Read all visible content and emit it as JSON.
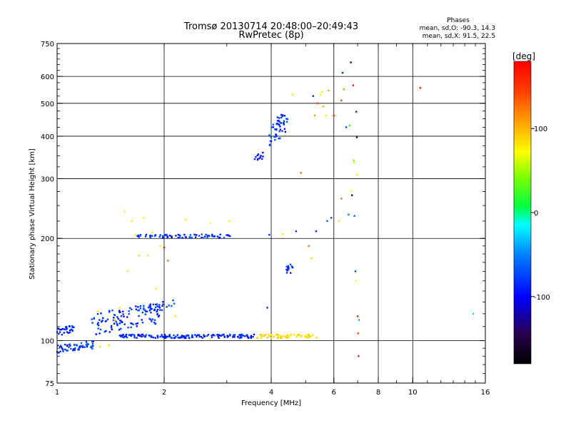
{
  "chart_data": {
    "type": "scatter",
    "title": "Tromsø 20130714 20:48:00–20:49:43",
    "subtitle": "RwPretec (8p)",
    "phases": {
      "title": "Phases",
      "line_o": "mean, sd,O: -90.3, 14.3",
      "line_x": "mean, sd,X:  91.5, 22.5"
    },
    "xlabel": "Frequency [MHz]",
    "ylabel": "Stationary phase Virtual Height [km]",
    "x_scale": "log",
    "y_scale": "log",
    "xlim": [
      1,
      16
    ],
    "ylim": [
      75,
      750
    ],
    "x_ticks": [
      1,
      2,
      4,
      6,
      8,
      10,
      16
    ],
    "x_tick_labels": [
      "1",
      "2",
      "4",
      "6",
      "8",
      "10",
      "16"
    ],
    "y_ticks": [
      75,
      100,
      200,
      300,
      400,
      500,
      600,
      750
    ],
    "y_tick_labels": [
      "75",
      "100",
      "200",
      "300",
      "400",
      "500",
      "600",
      "750"
    ],
    "grid": true,
    "colorbar": {
      "label": "[deg]",
      "min": -180,
      "max": 180,
      "ticks": [
        100,
        0,
        -100
      ],
      "tick_labels": [
        "100",
        "0",
        "-100"
      ]
    },
    "clusters": [
      {
        "kind": "band",
        "f": [
          1.0,
          1.28
        ],
        "h": [
          92,
          100
        ],
        "n": 60,
        "phase": -105
      },
      {
        "kind": "band",
        "f": [
          1.0,
          1.12
        ],
        "h": [
          103,
          112
        ],
        "n": 30,
        "phase": -110
      },
      {
        "kind": "band",
        "f": [
          1.25,
          1.95
        ],
        "h": [
          103,
          130
        ],
        "n": 110,
        "phase": -110
      },
      {
        "kind": "band",
        "f": [
          1.75,
          2.15
        ],
        "h": [
          120,
          132
        ],
        "n": 25,
        "phase": -105
      },
      {
        "kind": "line",
        "f": [
          1.5,
          3.6
        ],
        "h": 103,
        "n": 160,
        "phase": -112
      },
      {
        "kind": "line",
        "f": [
          3.65,
          5.4
        ],
        "h": 103,
        "n": 60,
        "phase": 115
      },
      {
        "kind": "line",
        "f": [
          1.68,
          3.1
        ],
        "h": 203,
        "n": 70,
        "phase": -110
      },
      {
        "kind": "band",
        "f": [
          3.55,
          3.8
        ],
        "h": [
          335,
          360
        ],
        "n": 12,
        "phase": -115
      },
      {
        "kind": "band",
        "f": [
          3.95,
          4.45
        ],
        "h": [
          370,
          480
        ],
        "n": 50,
        "phase": -110
      },
      {
        "kind": "band",
        "f": [
          4.4,
          4.65
        ],
        "h": [
          155,
          170
        ],
        "n": 14,
        "phase": -110
      }
    ],
    "points": [
      {
        "f": 1.55,
        "h": 240,
        "phase": 100
      },
      {
        "f": 1.58,
        "h": 160,
        "phase": 110
      },
      {
        "f": 1.62,
        "h": 225,
        "phase": 105
      },
      {
        "f": 1.66,
        "h": 205,
        "phase": 110
      },
      {
        "f": 1.7,
        "h": 178,
        "phase": 115
      },
      {
        "f": 1.75,
        "h": 230,
        "phase": 100
      },
      {
        "f": 1.8,
        "h": 178,
        "phase": 110
      },
      {
        "f": 1.85,
        "h": 208,
        "phase": 115
      },
      {
        "f": 1.9,
        "h": 142,
        "phase": 100
      },
      {
        "f": 1.95,
        "h": 190,
        "phase": 105
      },
      {
        "f": 2.0,
        "h": 188,
        "phase": 175
      },
      {
        "f": 2.05,
        "h": 172,
        "phase": 150
      },
      {
        "f": 2.3,
        "h": 227,
        "phase": 105
      },
      {
        "f": 2.7,
        "h": 222,
        "phase": 100
      },
      {
        "f": 3.05,
        "h": 225,
        "phase": 105
      },
      {
        "f": 3.9,
        "h": 125,
        "phase": -110
      },
      {
        "f": 3.95,
        "h": 205,
        "phase": -105
      },
      {
        "f": 4.3,
        "h": 206,
        "phase": 110
      },
      {
        "f": 4.6,
        "h": 530,
        "phase": 110
      },
      {
        "f": 4.7,
        "h": 210,
        "phase": -110
      },
      {
        "f": 4.85,
        "h": 312,
        "phase": 150
      },
      {
        "f": 5.1,
        "h": 190,
        "phase": 150
      },
      {
        "f": 5.2,
        "h": 175,
        "phase": 115
      },
      {
        "f": 5.25,
        "h": 525,
        "phase": -110
      },
      {
        "f": 5.3,
        "h": 460,
        "phase": 140
      },
      {
        "f": 5.35,
        "h": 210,
        "phase": -110
      },
      {
        "f": 5.4,
        "h": 500,
        "phase": 160
      },
      {
        "f": 5.5,
        "h": 530,
        "phase": 90
      },
      {
        "f": 5.55,
        "h": 540,
        "phase": 110
      },
      {
        "f": 5.6,
        "h": 490,
        "phase": 130
      },
      {
        "f": 5.7,
        "h": 460,
        "phase": 90
      },
      {
        "f": 5.8,
        "h": 545,
        "phase": 140
      },
      {
        "f": 5.75,
        "h": 225,
        "phase": -90
      },
      {
        "f": 5.9,
        "h": 230,
        "phase": -100
      },
      {
        "f": 6.0,
        "h": 460,
        "phase": 170
      },
      {
        "f": 6.2,
        "h": 225,
        "phase": 110
      },
      {
        "f": 6.3,
        "h": 262,
        "phase": 150
      },
      {
        "f": 6.35,
        "h": 615,
        "phase": -110
      },
      {
        "f": 6.3,
        "h": 510,
        "phase": 160
      },
      {
        "f": 6.4,
        "h": 550,
        "phase": 140
      },
      {
        "f": 6.5,
        "h": 425,
        "phase": -100
      },
      {
        "f": 6.6,
        "h": 235,
        "phase": -80
      },
      {
        "f": 6.65,
        "h": 430,
        "phase": 30
      },
      {
        "f": 6.7,
        "h": 660,
        "phase": -150
      },
      {
        "f": 6.72,
        "h": 275,
        "phase": 100
      },
      {
        "f": 6.75,
        "h": 268,
        "phase": -150
      },
      {
        "f": 6.8,
        "h": 565,
        "phase": 175
      },
      {
        "f": 6.82,
        "h": 340,
        "phase": 50
      },
      {
        "f": 6.84,
        "h": 335,
        "phase": 80
      },
      {
        "f": 6.86,
        "h": 233,
        "phase": -90
      },
      {
        "f": 6.9,
        "h": 160,
        "phase": -100
      },
      {
        "f": 6.92,
        "h": 150,
        "phase": 100
      },
      {
        "f": 6.94,
        "h": 472,
        "phase": -110
      },
      {
        "f": 6.96,
        "h": 397,
        "phase": -150
      },
      {
        "f": 6.98,
        "h": 308,
        "phase": 110
      },
      {
        "f": 7.0,
        "h": 118,
        "phase": 170
      },
      {
        "f": 7.02,
        "h": 105,
        "phase": 160
      },
      {
        "f": 7.04,
        "h": 90,
        "phase": 175
      },
      {
        "f": 7.06,
        "h": 115,
        "phase": -60
      },
      {
        "f": 10.5,
        "h": 555,
        "phase": 170
      },
      {
        "f": 14.8,
        "h": 120,
        "phase": -40
      },
      {
        "f": 1.5,
        "h": 125,
        "phase": 100
      },
      {
        "f": 1.45,
        "h": 115,
        "phase": 110
      },
      {
        "f": 2.15,
        "h": 118,
        "phase": 110
      },
      {
        "f": 1.3,
        "h": 122,
        "phase": 110
      },
      {
        "f": 1.32,
        "h": 96,
        "phase": 110
      },
      {
        "f": 1.4,
        "h": 97,
        "phase": 115
      },
      {
        "f": 2.7,
        "h": 101,
        "phase": 110
      }
    ]
  }
}
